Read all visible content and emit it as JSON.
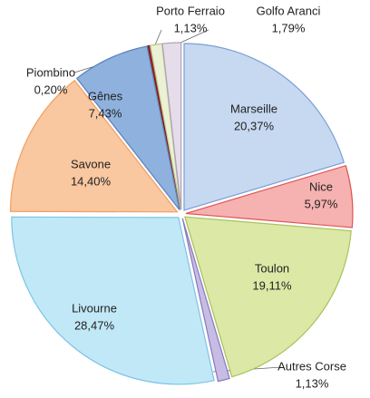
{
  "chart_data": {
    "type": "pie",
    "categories": [
      "Marseille",
      "Nice",
      "Toulon",
      "Autres Corse",
      "Livourne",
      "Savone",
      "Gênes",
      "Piombino",
      "Porto Ferraio",
      "Golfo Aranci"
    ],
    "values": [
      20.37,
      5.97,
      19.11,
      1.13,
      28.47,
      14.4,
      7.43,
      0.2,
      1.13,
      1.79
    ],
    "value_labels": [
      "20,37%",
      "5,97%",
      "19,11%",
      "1,13%",
      "28,47%",
      "14,40%",
      "7,43%",
      "0,20%",
      "1,13%",
      "1,79%"
    ],
    "colors": [
      "#c6d9f1",
      "#f6b1b1",
      "#dbe8a6",
      "#c7bce3",
      "#c1e8f7",
      "#f9c7a0",
      "#8fb1dd",
      "#b03030",
      "#eaf1d4",
      "#e5dde9"
    ],
    "edge_colors": [
      "#7a9fd4",
      "#e05555",
      "#a8c25a",
      "#8a78c0",
      "#7cc4e4",
      "#f0a060",
      "#5a84c0",
      "#801010",
      "#b8c890",
      "#b0a0b8"
    ]
  }
}
